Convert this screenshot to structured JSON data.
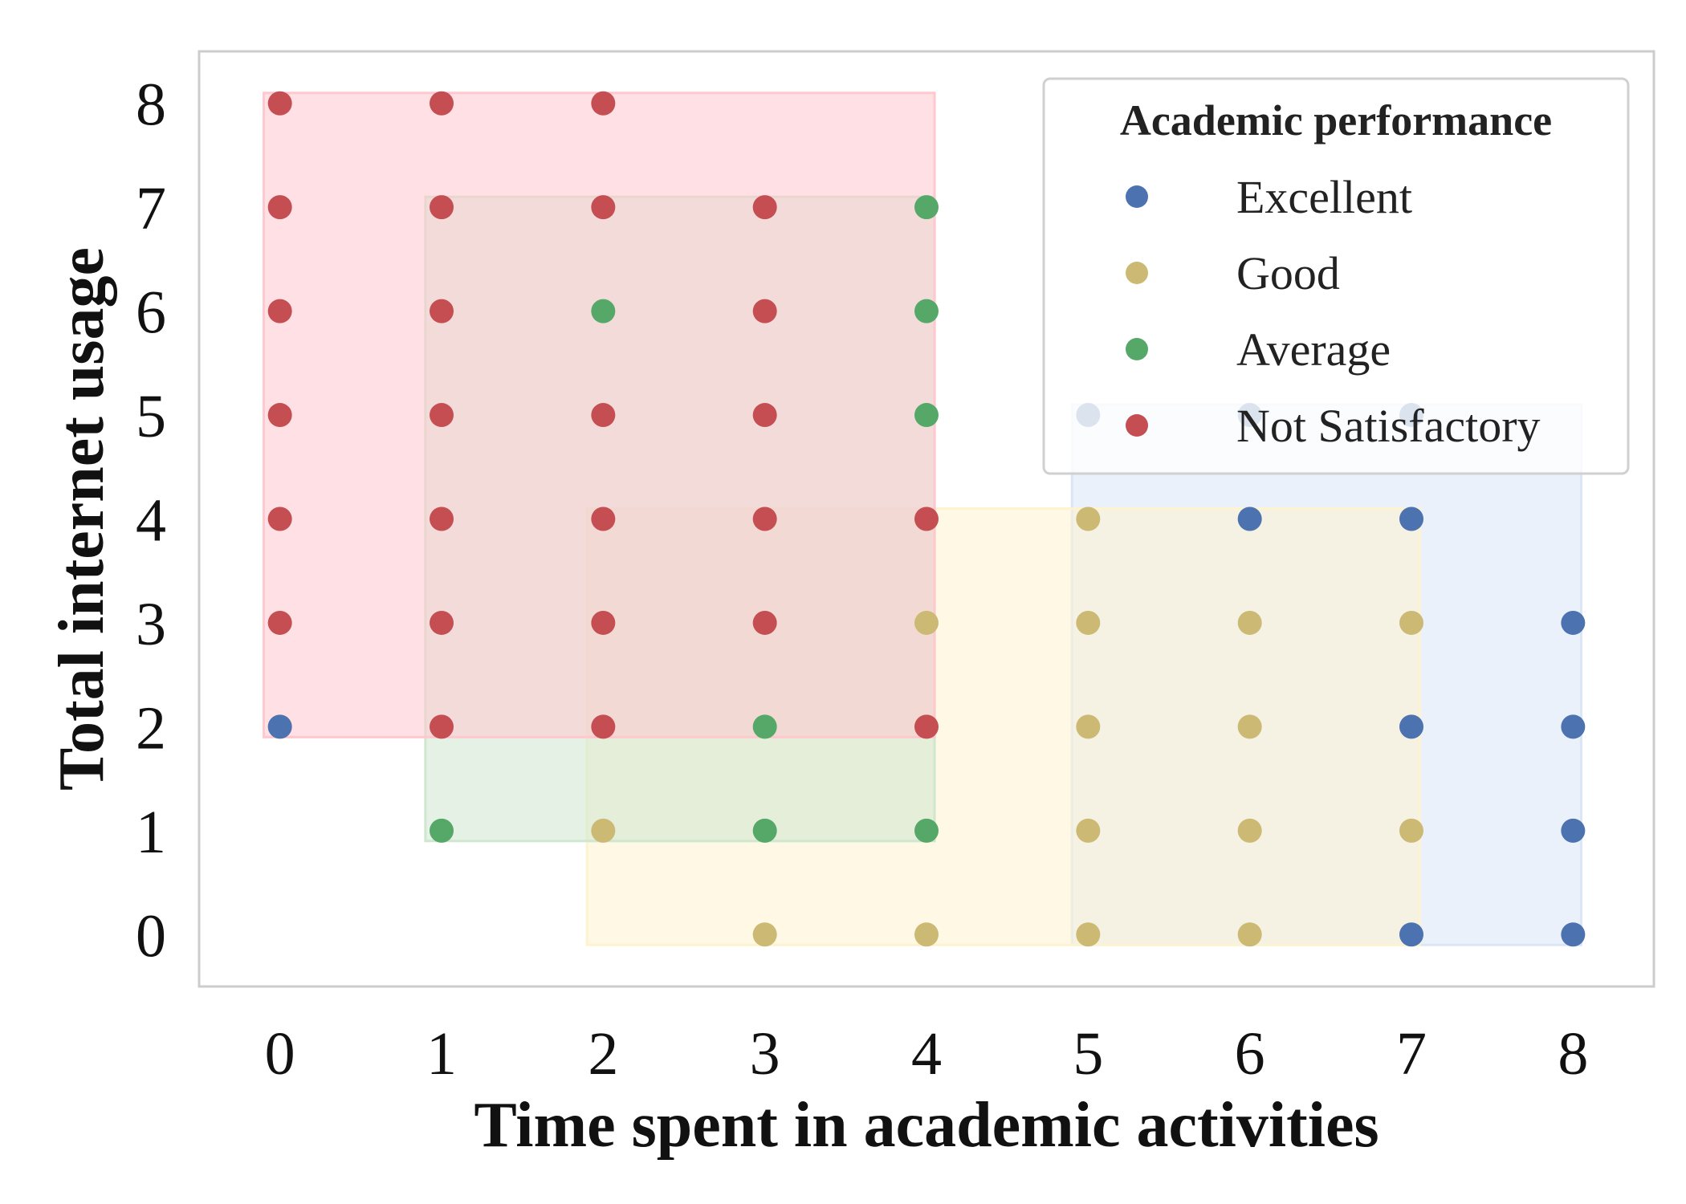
{
  "chart_data": {
    "type": "scatter",
    "title": "",
    "xlabel": "Time spent in academic activities",
    "ylabel": "Total internet usage",
    "xlim": [
      -0.5,
      8.5
    ],
    "ylim": [
      -0.5,
      8.5
    ],
    "x_ticks": [
      "0",
      "1",
      "2",
      "3",
      "4",
      "5",
      "6",
      "7",
      "8"
    ],
    "y_ticks": [
      "0",
      "1",
      "2",
      "3",
      "4",
      "5",
      "6",
      "7",
      "8"
    ],
    "grid": false,
    "legend": {
      "title": "Academic performance",
      "placement": "top-right",
      "entries": [
        "Excellent",
        "Good",
        "Average",
        "Not Satisfactory"
      ]
    },
    "colors": {
      "Excellent": "#4c72b0",
      "Good": "#ccb974",
      "Average": "#55a868",
      "Not Satisfactory": "#c44e52"
    },
    "regions": [
      {
        "name": "Excellent",
        "x": [
          5,
          8
        ],
        "y": [
          0,
          5
        ],
        "fill": "#dbe6f5"
      },
      {
        "name": "Good",
        "x": [
          2,
          7
        ],
        "y": [
          0,
          4
        ],
        "fill": "#fdf3cf"
      },
      {
        "name": "Average",
        "x": [
          1,
          4
        ],
        "y": [
          1,
          7
        ],
        "fill": "#cfe6cf"
      },
      {
        "name": "Not Satisfactory",
        "x": [
          0,
          4
        ],
        "y": [
          2,
          8
        ],
        "fill": "#ffc8cf"
      }
    ],
    "series": [
      {
        "name": "Excellent",
        "points": [
          [
            0,
            2
          ],
          [
            5,
            5
          ],
          [
            6,
            5
          ],
          [
            7,
            5
          ],
          [
            6,
            4
          ],
          [
            7,
            4
          ],
          [
            8,
            3
          ],
          [
            7,
            2
          ],
          [
            8,
            2
          ],
          [
            8,
            1
          ],
          [
            7,
            0
          ],
          [
            8,
            0
          ]
        ]
      },
      {
        "name": "Good",
        "points": [
          [
            4,
            3
          ],
          [
            5,
            4
          ],
          [
            5,
            3
          ],
          [
            6,
            3
          ],
          [
            7,
            3
          ],
          [
            5,
            2
          ],
          [
            6,
            2
          ],
          [
            2,
            1
          ],
          [
            5,
            1
          ],
          [
            6,
            1
          ],
          [
            7,
            1
          ],
          [
            3,
            0
          ],
          [
            4,
            0
          ],
          [
            5,
            0
          ],
          [
            6,
            0
          ]
        ]
      },
      {
        "name": "Average",
        "points": [
          [
            4,
            7
          ],
          [
            2,
            6
          ],
          [
            4,
            6
          ],
          [
            4,
            5
          ],
          [
            3,
            2
          ],
          [
            1,
            1
          ],
          [
            3,
            1
          ],
          [
            4,
            1
          ]
        ]
      },
      {
        "name": "Not Satisfactory",
        "points": [
          [
            0,
            8
          ],
          [
            1,
            8
          ],
          [
            2,
            8
          ],
          [
            0,
            7
          ],
          [
            1,
            7
          ],
          [
            2,
            7
          ],
          [
            3,
            7
          ],
          [
            0,
            6
          ],
          [
            1,
            6
          ],
          [
            3,
            6
          ],
          [
            0,
            5
          ],
          [
            1,
            5
          ],
          [
            2,
            5
          ],
          [
            3,
            5
          ],
          [
            0,
            4
          ],
          [
            1,
            4
          ],
          [
            2,
            4
          ],
          [
            3,
            4
          ],
          [
            4,
            4
          ],
          [
            0,
            3
          ],
          [
            1,
            3
          ],
          [
            2,
            3
          ],
          [
            3,
            3
          ],
          [
            1,
            2
          ],
          [
            2,
            2
          ],
          [
            4,
            2
          ]
        ]
      }
    ]
  }
}
